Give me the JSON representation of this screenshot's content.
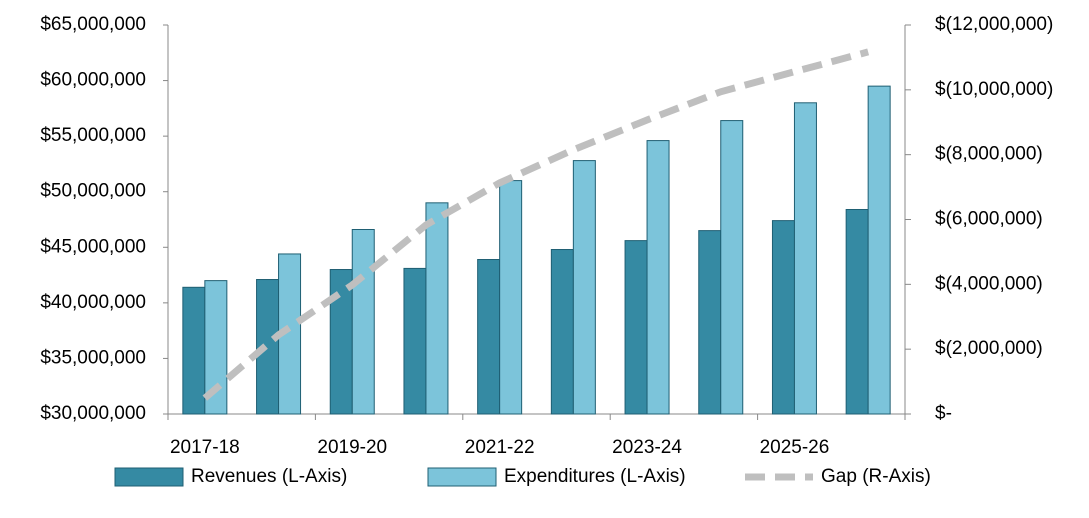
{
  "chart_data": {
    "type": "bar",
    "categories": [
      "2017-18",
      null,
      "2019-20",
      null,
      "2021-22",
      null,
      "2023-24",
      null,
      "2025-26",
      null
    ],
    "series": [
      {
        "name": "Revenues (L-Axis)",
        "color": "#358aa3",
        "values": [
          41400000,
          42100000,
          43000000,
          43100000,
          43900000,
          44800000,
          45600000,
          46500000,
          47400000,
          48400000
        ]
      },
      {
        "name": "Expenditures (L-Axis)",
        "color": "#7cc4da",
        "values": [
          42000000,
          44400000,
          46600000,
          49000000,
          51000000,
          52800000,
          54600000,
          56400000,
          58000000,
          59500000
        ]
      },
      {
        "name": "Gap (R-Axis)",
        "color": "#bfbfbf",
        "type": "line",
        "axis": "y2",
        "values": [
          -490000,
          -2440000,
          -3980000,
          -5830000,
          -7130000,
          -8150000,
          -9070000,
          -9940000,
          -10560000,
          -11170000
        ]
      }
    ],
    "ylim": [
      30000000,
      65000000
    ],
    "yticks": [
      {
        "value": 30000000,
        "label": "$30,000,000"
      },
      {
        "value": 35000000,
        "label": "$35,000,000"
      },
      {
        "value": 40000000,
        "label": "$40,000,000"
      },
      {
        "value": 45000000,
        "label": "$45,000,000"
      },
      {
        "value": 50000000,
        "label": "$50,000,000"
      },
      {
        "value": 55000000,
        "label": "$55,000,000"
      },
      {
        "value": 60000000,
        "label": "$60,000,000"
      },
      {
        "value": 65000000,
        "label": "$65,000,000"
      }
    ],
    "y2lim": [
      0,
      -12000000
    ],
    "y2ticks": [
      {
        "value": 0,
        "label": "$-"
      },
      {
        "value": -2000000,
        "label": "$(2,000,000)"
      },
      {
        "value": -4000000,
        "label": "$(4,000,000)"
      },
      {
        "value": -6000000,
        "label": "$(6,000,000)"
      },
      {
        "value": -8000000,
        "label": "$(8,000,000)"
      },
      {
        "value": -10000000,
        "label": "$(10,000,000)"
      },
      {
        "value": -12000000,
        "label": "$(12,000,000)"
      }
    ],
    "legend": "bottom"
  }
}
